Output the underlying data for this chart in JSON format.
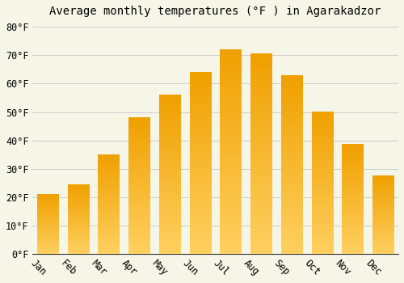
{
  "title": "Average monthly temperatures (°F ) in Agarakadzor",
  "months": [
    "Jan",
    "Feb",
    "Mar",
    "Apr",
    "May",
    "Jun",
    "Jul",
    "Aug",
    "Sep",
    "Oct",
    "Nov",
    "Dec"
  ],
  "values": [
    21,
    24.5,
    35,
    48,
    56,
    64,
    72,
    70.5,
    63,
    50,
    38.5,
    27.5
  ],
  "bar_color": "#F5A623",
  "bar_color_bottom": "#FFD060",
  "bar_color_top": "#F0A000",
  "background_color": "#F5F5E8",
  "grid_color": "#CCCCCC",
  "ylim": [
    0,
    82
  ],
  "yticks": [
    0,
    10,
    20,
    30,
    40,
    50,
    60,
    70,
    80
  ],
  "title_fontsize": 10,
  "tick_fontsize": 8.5,
  "font_family": "monospace"
}
